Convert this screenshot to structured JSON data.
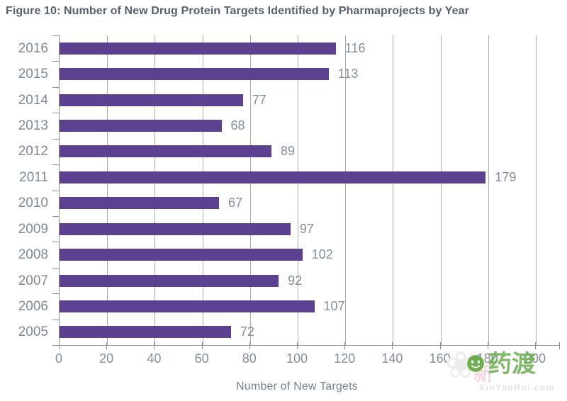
{
  "title": "Figure 10: Number of New Drug Protein Targets Identified by Pharmaprojects by Year",
  "chart_data": {
    "type": "bar",
    "orientation": "horizontal",
    "categories": [
      "2016",
      "2015",
      "2014",
      "2013",
      "2012",
      "2011",
      "2010",
      "2009",
      "2008",
      "2007",
      "2006",
      "2005"
    ],
    "values": [
      116,
      113,
      77,
      68,
      89,
      179,
      67,
      97,
      102,
      92,
      107,
      72
    ],
    "title": "Figure 10: Number of New Drug Protein Targets Identified by Pharmaprojects by Year",
    "xlabel": "Number of New Targets",
    "ylabel": "",
    "xlim": [
      0,
      200
    ],
    "xticks": [
      0,
      20,
      40,
      60,
      80,
      100,
      120,
      140,
      160,
      180,
      200
    ],
    "grid": true,
    "legend": "none",
    "bar_color": "#5d4191",
    "gridline_color": "#a9a9a9",
    "axis_color": "#8f8f8f",
    "tick_label_color": "#848f9b",
    "title_color": "#57606e"
  },
  "watermark": {
    "clover_glyph": "❀",
    "faint_text": "新",
    "brand": "药渡",
    "url": "XinYaoHui.com",
    "brand_color": "#68ae50"
  }
}
